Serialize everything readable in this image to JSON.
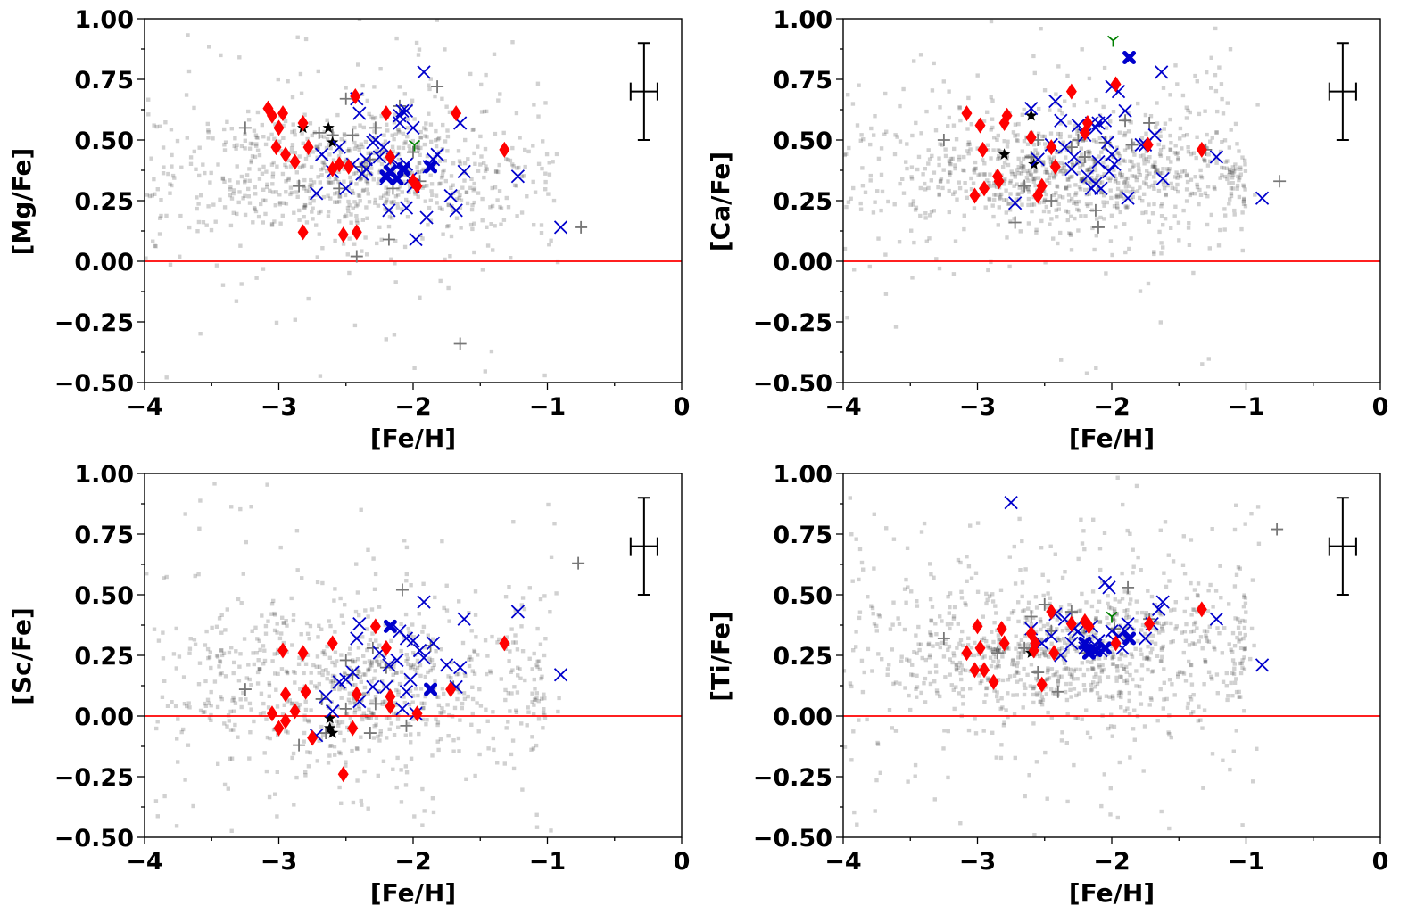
{
  "colors": {
    "background_sample": "#000000",
    "red_diamond": "#ff0000",
    "blue_cross": "#0000cc",
    "gray_plus": "#777777",
    "black_star": "#000000",
    "green_tri": "#008000",
    "reference_line": "#ff0000"
  },
  "chart_data": [
    {
      "type": "scatter",
      "xlabel": "[Fe/H]",
      "ylabel": "[Mg/Fe]",
      "xlim": [
        -4,
        0
      ],
      "ylim": [
        -0.5,
        1.0
      ],
      "xticks": [
        "−4",
        "−3",
        "−2",
        "−1",
        "0"
      ],
      "yticks": [
        "−0.50",
        "−0.25",
        "0.00",
        "0.25",
        "0.50",
        "0.75",
        "1.00"
      ],
      "reference_y": 0.0,
      "error_bar": {
        "x": -0.28,
        "y": 0.7,
        "xerr": 0.1,
        "yerr": 0.2
      },
      "background": {
        "center": [
          -2.4,
          0.36
        ],
        "spread": [
          0.7,
          0.14
        ],
        "count": 850,
        "seed": 11
      },
      "series": [
        {
          "name": "red diamonds",
          "marker": "diamond",
          "x": [
            -3.08,
            -3.0,
            -2.97,
            -3.02,
            -2.95,
            -2.88,
            -2.82,
            -2.78,
            -2.55,
            -2.48,
            -2.43,
            -2.2,
            -2.17,
            -2.0,
            -1.97,
            -1.68,
            -1.32,
            -2.82,
            -2.52,
            -2.42,
            -3.05,
            -2.6
          ],
          "y": [
            0.63,
            0.55,
            0.61,
            0.47,
            0.44,
            0.41,
            0.57,
            0.47,
            0.4,
            0.39,
            0.68,
            0.61,
            0.43,
            0.33,
            0.31,
            0.61,
            0.46,
            0.12,
            0.11,
            0.12,
            0.6,
            0.38
          ]
        },
        {
          "name": "blue crosses",
          "marker": "x",
          "x": [
            -1.92,
            -2.42,
            -2.55,
            -2.35,
            -2.1,
            -2.08,
            -2.05,
            -2.0,
            -2.22,
            -2.15,
            -2.12,
            -2.3,
            -2.45,
            -2.38,
            -2.6,
            -2.72,
            -2.68,
            -1.88,
            -1.82,
            -1.65,
            -1.62,
            -1.68,
            -1.9,
            -1.98,
            -2.18,
            -2.2,
            -2.02,
            -2.05,
            -2.25,
            -1.22,
            -0.9,
            -2.0,
            -2.4,
            -2.05,
            -2.1,
            -2.35,
            -2.28,
            -1.72,
            -2.5,
            -1.85
          ],
          "y": [
            0.78,
            0.67,
            0.47,
            0.42,
            0.57,
            0.62,
            0.62,
            0.55,
            0.47,
            0.42,
            0.39,
            0.49,
            0.4,
            0.36,
            0.37,
            0.28,
            0.44,
            0.39,
            0.44,
            0.57,
            0.37,
            0.21,
            0.18,
            0.09,
            0.21,
            0.34,
            0.34,
            0.4,
            0.43,
            0.35,
            0.14,
            0.31,
            0.61,
            0.22,
            0.6,
            0.38,
            0.5,
            0.27,
            0.3,
            0.42
          ]
        },
        {
          "name": "bold blue crosses",
          "marker": "boldx",
          "x": [
            -2.17,
            -2.12,
            -1.87,
            -2.07,
            -2.2
          ],
          "y": [
            0.37,
            0.34,
            0.39,
            0.38,
            0.35
          ]
        },
        {
          "name": "gray plus",
          "marker": "plus",
          "x": [
            -3.25,
            -2.7,
            -2.5,
            -2.45,
            -2.42,
            -2.32,
            -2.28,
            -2.18,
            -2.1,
            -1.82,
            -1.65,
            -0.75,
            -2.38,
            -2.55,
            -2.85,
            -2.0,
            -2.15,
            -2.6,
            -1.95
          ],
          "y": [
            0.55,
            0.53,
            0.67,
            0.52,
            0.02,
            0.42,
            0.55,
            0.09,
            0.64,
            0.72,
            -0.34,
            0.14,
            0.39,
            0.3,
            0.31,
            0.45,
            0.3,
            0.52,
            0.33
          ]
        },
        {
          "name": "black stars",
          "marker": "star",
          "x": [
            -2.82,
            -2.63,
            -2.6
          ],
          "y": [
            0.55,
            0.55,
            0.49
          ]
        },
        {
          "name": "green tri",
          "marker": "tri",
          "x": [
            -1.99
          ],
          "y": [
            0.48
          ]
        }
      ]
    },
    {
      "type": "scatter",
      "xlabel": "[Fe/H]",
      "ylabel": "[Ca/Fe]",
      "xlim": [
        -4,
        0
      ],
      "ylim": [
        -0.5,
        1.0
      ],
      "xticks": [
        "−4",
        "−3",
        "−2",
        "−1",
        "0"
      ],
      "yticks": [
        "−0.50",
        "−0.25",
        "0.00",
        "0.25",
        "0.50",
        "0.75",
        "1.00"
      ],
      "reference_y": 0.0,
      "error_bar": {
        "x": -0.28,
        "y": 0.7,
        "xerr": 0.1,
        "yerr": 0.2
      },
      "background": {
        "center": [
          -2.3,
          0.37
        ],
        "spread": [
          0.75,
          0.11
        ],
        "count": 1000,
        "seed": 23
      },
      "series": [
        {
          "name": "red diamonds",
          "marker": "diamond",
          "x": [
            -3.08,
            -2.98,
            -2.96,
            -3.02,
            -2.8,
            -2.78,
            -2.84,
            -2.85,
            -2.6,
            -2.55,
            -2.45,
            -2.3,
            -2.2,
            -2.18,
            -1.97,
            -1.73,
            -1.33,
            -2.95,
            -2.52,
            -2.42
          ],
          "y": [
            0.61,
            0.56,
            0.46,
            0.27,
            0.57,
            0.6,
            0.33,
            0.35,
            0.51,
            0.27,
            0.47,
            0.7,
            0.53,
            0.57,
            0.73,
            0.48,
            0.46,
            0.3,
            0.31,
            0.39
          ]
        },
        {
          "name": "blue crosses",
          "marker": "x",
          "x": [
            -1.63,
            -2.0,
            -1.95,
            -1.9,
            -2.05,
            -2.1,
            -2.15,
            -2.2,
            -2.35,
            -2.45,
            -2.55,
            -2.6,
            -2.72,
            -2.42,
            -2.28,
            -2.18,
            -2.12,
            -2.02,
            -2.0,
            -1.98,
            -1.75,
            -1.68,
            -1.62,
            -1.88,
            -1.78,
            -2.08,
            -2.1,
            -2.15,
            -1.22,
            -0.88,
            -2.03,
            -2.12,
            -2.25,
            -2.3,
            -2.38
          ],
          "y": [
            0.78,
            0.72,
            0.7,
            0.62,
            0.58,
            0.57,
            0.57,
            0.52,
            0.47,
            0.48,
            0.42,
            0.63,
            0.24,
            0.66,
            0.43,
            0.35,
            0.32,
            0.37,
            0.44,
            0.4,
            0.48,
            0.52,
            0.34,
            0.26,
            0.48,
            0.3,
            0.41,
            0.3,
            0.43,
            0.26,
            0.49,
            0.55,
            0.56,
            0.38,
            0.58
          ]
        },
        {
          "name": "bold blue crosses",
          "marker": "boldx",
          "x": [
            -1.87
          ],
          "y": [
            0.84
          ]
        },
        {
          "name": "gray plus",
          "marker": "plus",
          "x": [
            -3.25,
            -2.72,
            -2.55,
            -2.6,
            -2.45,
            -2.25,
            -2.12,
            -2.1,
            -1.9,
            -1.72,
            -1.3,
            -0.75,
            -2.3,
            -2.65,
            -2.05,
            -2.2,
            -1.85
          ],
          "y": [
            0.5,
            0.16,
            0.5,
            0.43,
            0.25,
            0.5,
            0.21,
            0.14,
            0.58,
            0.57,
            0.46,
            0.33,
            0.47,
            0.31,
            0.49,
            0.43,
            0.48
          ]
        },
        {
          "name": "black stars",
          "marker": "star",
          "x": [
            -2.8,
            -2.6,
            -2.58
          ],
          "y": [
            0.44,
            0.6,
            0.4
          ]
        },
        {
          "name": "green tri",
          "marker": "tri",
          "x": [
            -1.99
          ],
          "y": [
            0.91
          ]
        }
      ]
    },
    {
      "type": "scatter",
      "xlabel": "[Fe/H]",
      "ylabel": "[Sc/Fe]",
      "xlim": [
        -4,
        0
      ],
      "ylim": [
        -0.5,
        1.0
      ],
      "xticks": [
        "−4",
        "−3",
        "−2",
        "−1",
        "0"
      ],
      "yticks": [
        "−0.50",
        "−0.25",
        "0.00",
        "0.25",
        "0.50",
        "0.75",
        "1.00"
      ],
      "reference_y": 0.0,
      "error_bar": {
        "x": -0.28,
        "y": 0.7,
        "xerr": 0.1,
        "yerr": 0.2
      },
      "background": {
        "center": [
          -2.45,
          0.12
        ],
        "spread": [
          0.8,
          0.17
        ],
        "count": 850,
        "seed": 37
      },
      "series": [
        {
          "name": "red diamonds",
          "marker": "diamond",
          "x": [
            -2.97,
            -2.95,
            -2.82,
            -2.8,
            -2.6,
            -2.42,
            -2.28,
            -2.2,
            -2.17,
            -2.17,
            -1.97,
            -1.72,
            -1.32,
            -2.88,
            -2.95,
            -3.0,
            -3.05,
            -2.75,
            -2.52,
            -2.45
          ],
          "y": [
            0.27,
            0.09,
            0.26,
            0.1,
            0.3,
            0.09,
            0.37,
            0.28,
            0.08,
            0.04,
            0.01,
            0.11,
            0.3,
            0.02,
            -0.02,
            -0.05,
            0.01,
            -0.09,
            -0.24,
            -0.05
          ]
        },
        {
          "name": "blue crosses",
          "marker": "x",
          "x": [
            -1.92,
            -2.1,
            -2.05,
            -2.0,
            -1.95,
            -2.12,
            -2.18,
            -2.25,
            -2.4,
            -2.42,
            -2.5,
            -2.55,
            -2.6,
            -2.72,
            -2.65,
            -2.4,
            -2.2,
            -2.02,
            -1.98,
            -1.85,
            -1.75,
            -1.62,
            -1.65,
            -1.68,
            -1.22,
            -0.9,
            -2.08,
            -2.3,
            -2.45,
            -1.92,
            -2.05
          ],
          "y": [
            0.47,
            0.35,
            0.32,
            0.31,
            0.27,
            0.23,
            0.21,
            0.26,
            0.38,
            0.32,
            0.15,
            0.14,
            0.02,
            -0.08,
            0.08,
            0.06,
            0.12,
            0.15,
            0.01,
            0.3,
            0.21,
            0.4,
            0.2,
            0.12,
            0.43,
            0.17,
            0.03,
            0.12,
            0.18,
            0.24,
            0.1
          ]
        },
        {
          "name": "bold blue crosses",
          "marker": "boldx",
          "x": [
            -2.17,
            -1.87
          ],
          "y": [
            0.37,
            0.11
          ]
        },
        {
          "name": "gray plus",
          "marker": "plus",
          "x": [
            -3.25,
            -2.85,
            -2.65,
            -2.5,
            -2.45,
            -2.32,
            -2.3,
            -2.08,
            -1.87,
            -1.7,
            -0.77,
            -2.2,
            -2.68,
            -2.28,
            -2.05,
            -2.5
          ],
          "y": [
            0.11,
            -0.12,
            -0.07,
            0.23,
            0.17,
            -0.07,
            0.28,
            0.52,
            0.29,
            0.12,
            0.63,
            0.2,
            0.07,
            0.05,
            -0.04,
            0.03
          ]
        },
        {
          "name": "black stars",
          "marker": "star",
          "x": [
            -2.62,
            -2.6,
            -2.62
          ],
          "y": [
            -0.01,
            -0.07,
            -0.05
          ]
        },
        {
          "name": "green tri",
          "marker": "tri",
          "x": [],
          "y": []
        }
      ]
    },
    {
      "type": "scatter",
      "xlabel": "[Fe/H]",
      "ylabel": "[Ti/Fe]",
      "xlim": [
        -4,
        0
      ],
      "ylim": [
        -0.5,
        1.0
      ],
      "xticks": [
        "−4",
        "−3",
        "−2",
        "−1",
        "0"
      ],
      "yticks": [
        "−0.50",
        "−0.25",
        "0.00",
        "0.25",
        "0.50",
        "0.75",
        "1.00"
      ],
      "reference_y": 0.0,
      "error_bar": {
        "x": -0.28,
        "y": 0.7,
        "xerr": 0.1,
        "yerr": 0.2
      },
      "background": {
        "center": [
          -2.3,
          0.28
        ],
        "spread": [
          0.75,
          0.15
        ],
        "count": 1050,
        "seed": 53
      },
      "series": [
        {
          "name": "red diamonds",
          "marker": "diamond",
          "x": [
            -3.08,
            -3.0,
            -2.98,
            -2.95,
            -2.88,
            -2.82,
            -2.8,
            -2.6,
            -2.57,
            -2.45,
            -2.43,
            -2.3,
            -2.17,
            -1.97,
            -1.72,
            -1.33,
            -3.02,
            -2.52,
            -2.58,
            -2.2
          ],
          "y": [
            0.26,
            0.37,
            0.28,
            0.19,
            0.14,
            0.36,
            0.3,
            0.34,
            0.3,
            0.43,
            0.26,
            0.38,
            0.37,
            0.3,
            0.38,
            0.44,
            0.19,
            0.13,
            0.27,
            0.39
          ]
        },
        {
          "name": "blue crosses",
          "marker": "x",
          "x": [
            -2.75,
            -2.05,
            -2.02,
            -2.0,
            -1.98,
            -1.92,
            -1.88,
            -1.75,
            -1.65,
            -1.62,
            -1.7,
            -2.1,
            -2.15,
            -2.2,
            -2.28,
            -2.35,
            -2.45,
            -2.52,
            -2.6,
            -2.42,
            -2.3,
            -2.38,
            -1.22,
            -0.88,
            -2.08,
            -1.95,
            -2.12,
            -2.25,
            -1.9
          ],
          "y": [
            0.88,
            0.55,
            0.53,
            0.35,
            0.31,
            0.28,
            0.38,
            0.32,
            0.44,
            0.47,
            0.38,
            0.31,
            0.37,
            0.28,
            0.36,
            0.4,
            0.33,
            0.3,
            0.36,
            0.42,
            0.3,
            0.25,
            0.4,
            0.21,
            0.27,
            0.33,
            0.29,
            0.35,
            0.35
          ]
        },
        {
          "name": "bold blue crosses",
          "marker": "boldx",
          "x": [
            -2.17,
            -2.12,
            -1.87,
            -2.05,
            -2.2
          ],
          "y": [
            0.26,
            0.27,
            0.32,
            0.28,
            0.3
          ]
        },
        {
          "name": "gray plus",
          "marker": "plus",
          "x": [
            -3.25,
            -2.85,
            -2.55,
            -2.5,
            -2.4,
            -2.3,
            -2.2,
            -2.1,
            -1.98,
            -1.88,
            -1.72,
            -0.77,
            -2.45,
            -2.65,
            -2.6
          ],
          "y": [
            0.32,
            0.26,
            0.18,
            0.46,
            0.1,
            0.43,
            0.26,
            0.27,
            0.36,
            0.53,
            0.4,
            0.77,
            0.35,
            0.28,
            0.41
          ]
        },
        {
          "name": "black stars",
          "marker": "star",
          "x": [
            -2.6
          ],
          "y": [
            0.26
          ]
        },
        {
          "name": "green tri",
          "marker": "tri",
          "x": [
            -2.0
          ],
          "y": [
            0.41
          ]
        }
      ]
    }
  ]
}
